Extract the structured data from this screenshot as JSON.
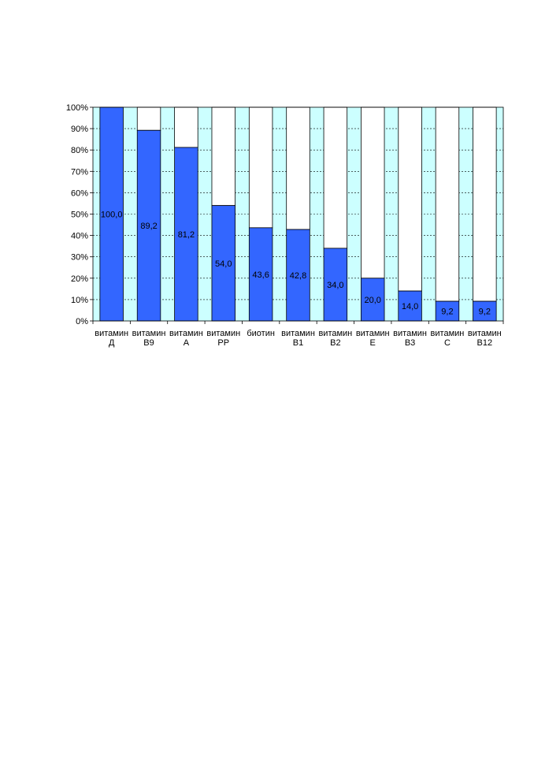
{
  "chart_data": {
    "type": "bar",
    "stacked_percent": true,
    "categories": [
      [
        "витамин",
        "Д"
      ],
      [
        "витамин",
        "В9"
      ],
      [
        "витамин",
        "А"
      ],
      [
        "витамин",
        "РР"
      ],
      [
        "биотин",
        ""
      ],
      [
        "витамин",
        "В1"
      ],
      [
        "витамин",
        "В2"
      ],
      [
        "витамин",
        "Е"
      ],
      [
        "витамин",
        "В3"
      ],
      [
        "витамин",
        "С"
      ],
      [
        "витамин",
        "В12"
      ]
    ],
    "values": [
      100.0,
      89.2,
      81.2,
      54.0,
      43.6,
      42.8,
      34.0,
      20.0,
      14.0,
      9.2,
      9.2
    ],
    "value_labels": [
      "100,0",
      "89,2",
      "81,2",
      "54,0",
      "43,6",
      "42,8",
      "34,0",
      "20,0",
      "14,0",
      "9,2",
      "9,2"
    ],
    "ylim": [
      0,
      100
    ],
    "yticks": [
      "0%",
      "10%",
      "20%",
      "30%",
      "40%",
      "50%",
      "60%",
      "70%",
      "80%",
      "90%",
      "100%"
    ],
    "grid": true,
    "colors": {
      "bar": "#3366ff",
      "remainder": "#ffffff",
      "plot_background": "#ccffff",
      "grid": "#000000"
    }
  }
}
